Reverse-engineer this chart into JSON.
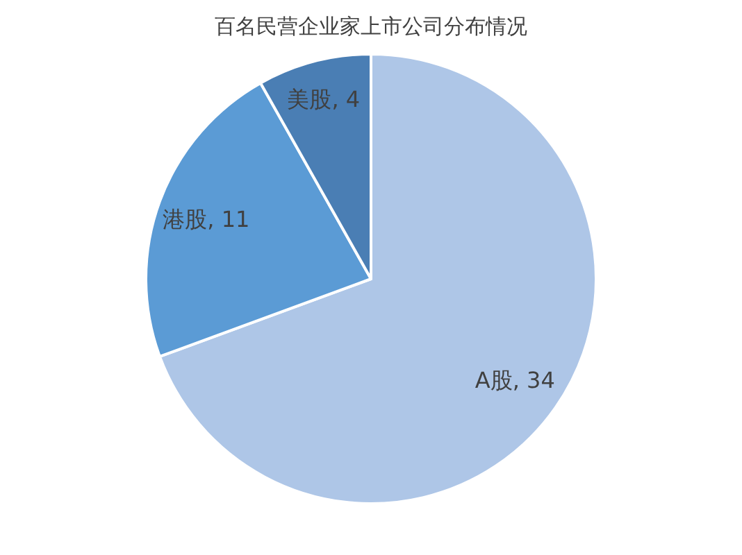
{
  "chart_data": {
    "type": "pie",
    "title": "百名民营企业家上市公司分布情况",
    "categories": [
      "A股",
      "港股",
      "美股"
    ],
    "values": [
      34,
      11,
      4
    ],
    "colors": [
      "#aec6e7",
      "#5b9bd5",
      "#4a7eb4"
    ],
    "value_labels": [
      ", 34",
      ", 11",
      ", 4"
    ]
  }
}
